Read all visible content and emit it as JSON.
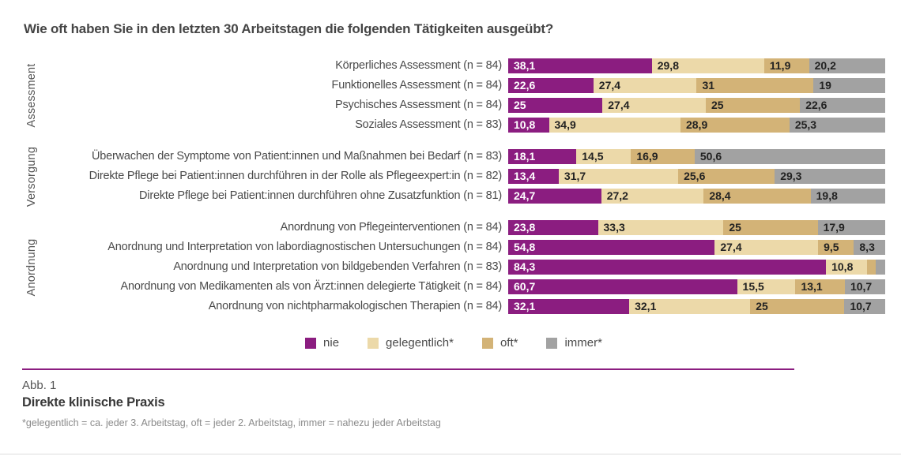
{
  "title": "Wie oft haben Sie in den letzten 30 Arbeitstagen die folgenden Tätigkeiten ausgeübt?",
  "chart_data": {
    "type": "bar",
    "subtype": "horizontal-stacked-100",
    "unit": "percent",
    "xlim": [
      0,
      100
    ],
    "legend_position": "bottom-center",
    "series": [
      "nie",
      "gelegentlich*",
      "oft*",
      "immer*"
    ],
    "series_colors": [
      "#8b1d80",
      "#ecd9a9",
      "#d3b377",
      "#a2a2a2"
    ],
    "groups": [
      {
        "name": "Assessment",
        "rows": [
          {
            "label": "Körperliches Assessment (n = 84)",
            "values": [
              38.1,
              29.8,
              11.9,
              20.2
            ],
            "value_labels": [
              "38,1",
              "29,8",
              "11,9",
              "20,2"
            ]
          },
          {
            "label": "Funktionelles Assessment (n = 84)",
            "values": [
              22.6,
              27.4,
              31,
              19
            ],
            "value_labels": [
              "22,6",
              "27,4",
              "31",
              "19"
            ]
          },
          {
            "label": "Psychisches Assessment (n = 84)",
            "values": [
              25,
              27.4,
              25,
              22.6
            ],
            "value_labels": [
              "25",
              "27,4",
              "25",
              "22,6"
            ]
          },
          {
            "label": "Soziales Assessment (n = 83)",
            "values": [
              10.8,
              34.9,
              28.9,
              25.3
            ],
            "value_labels": [
              "10,8",
              "34,9",
              "28,9",
              "25,3"
            ]
          }
        ]
      },
      {
        "name": "Versorgung",
        "rows": [
          {
            "label": "Überwachen der Symptome von Patient:innen und Maßnahmen bei Bedarf (n = 83)",
            "values": [
              18.1,
              14.5,
              16.9,
              50.6
            ],
            "value_labels": [
              "18,1",
              "14,5",
              "16,9",
              "50,6"
            ]
          },
          {
            "label": "Direkte Pflege bei Patient:innen durchführen in der Rolle als Pflegeexpert:in (n = 82)",
            "values": [
              13.4,
              31.7,
              25.6,
              29.3
            ],
            "value_labels": [
              "13,4",
              "31,7",
              "25,6",
              "29,3"
            ]
          },
          {
            "label": "Direkte Pflege bei Patient:innen durchführen ohne Zusatzfunktion (n = 81)",
            "values": [
              24.7,
              27.2,
              28.4,
              19.8
            ],
            "value_labels": [
              "24,7",
              "27,2",
              "28,4",
              "19,8"
            ]
          }
        ]
      },
      {
        "name": "Anordnung",
        "rows": [
          {
            "label": "Anordnung von Pflegeinterventionen (n = 84)",
            "values": [
              23.8,
              33.3,
              25,
              17.9
            ],
            "value_labels": [
              "23,8",
              "33,3",
              "25",
              "17,9"
            ]
          },
          {
            "label": "Anordnung und Interpretation von labordiagnostischen Untersuchungen (n = 84)",
            "values": [
              54.8,
              27.4,
              9.5,
              8.3
            ],
            "value_labels": [
              "54,8",
              "27,4",
              "9,5",
              "8,3"
            ]
          },
          {
            "label": "Anordnung und Interpretation von bildgebenden Verfahren (n = 83)",
            "values": [
              84.3,
              10.8,
              2.4,
              2.4
            ],
            "value_labels": [
              "84,3",
              "10,8",
              "",
              ""
            ]
          },
          {
            "label": "Anordnung von Medikamenten als von Ärzt:innen delegierte Tätigkeit (n = 84)",
            "values": [
              60.7,
              15.5,
              13.1,
              10.7
            ],
            "value_labels": [
              "60,7",
              "15,5",
              "13,1",
              "10,7"
            ]
          },
          {
            "label": "Anordnung von nichtpharmakologischen Therapien (n = 84)",
            "values": [
              32.1,
              32.1,
              25,
              10.7
            ],
            "value_labels": [
              "32,1",
              "32,1",
              "25",
              "10,7"
            ]
          }
        ]
      }
    ]
  },
  "colors": {
    "accent_rule": "#8b1d80",
    "bottom_divider": "#dcdcdc"
  },
  "footer": {
    "figure_label": "Abb. 1",
    "figure_title": "Direkte klinische Praxis",
    "footnote": "*gelegentlich = ca. jeder 3. Arbeitstag, oft = jeder 2. Arbeitstag, immer = nahezu jeder Arbeitstag"
  }
}
